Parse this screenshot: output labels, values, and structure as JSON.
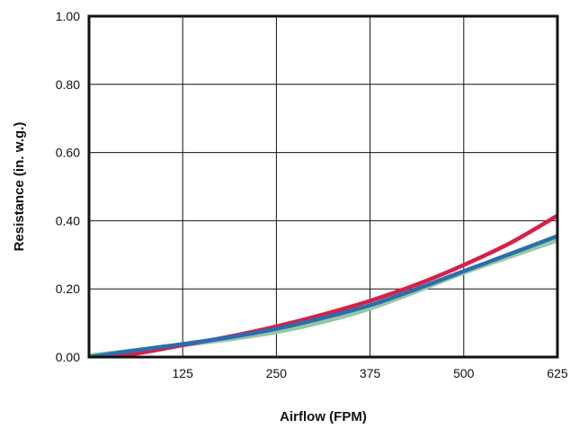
{
  "chart_data": {
    "type": "line",
    "xlabel": "Airflow (FPM)",
    "ylabel": "Resistance (in. w.g.)",
    "xlim": [
      0,
      625
    ],
    "ylim": [
      0,
      1.0
    ],
    "x_ticks": [
      125,
      250,
      375,
      500,
      625
    ],
    "x_tick_labels": [
      "125",
      "250",
      "375",
      "500",
      "625"
    ],
    "y_ticks": [
      0,
      0.2,
      0.4,
      0.6,
      0.8,
      1.0
    ],
    "y_tick_labels": [
      "0.00",
      "0.20",
      "0.40",
      "0.60",
      "0.80",
      "1.00"
    ],
    "grid": true,
    "legend": "none",
    "series": [
      {
        "color": "#95c8a6",
        "x": [
          0,
          62.5,
          125,
          187.5,
          250,
          312.5,
          375,
          437.5,
          500,
          562.5,
          625
        ],
        "y": [
          0.005,
          0.02,
          0.035,
          0.052,
          0.073,
          0.103,
          0.142,
          0.193,
          0.247,
          0.295,
          0.342
        ]
      },
      {
        "color": "#d81f45",
        "x": [
          0,
          62.5,
          125,
          187.5,
          250,
          312.5,
          375,
          437.5,
          500,
          562.5,
          625
        ],
        "y": [
          -0.005,
          0.01,
          0.035,
          0.06,
          0.09,
          0.125,
          0.165,
          0.213,
          0.27,
          0.335,
          0.415
        ]
      },
      {
        "color": "#2a6ead",
        "x": [
          0,
          62.5,
          125,
          187.5,
          250,
          312.5,
          375,
          437.5,
          500,
          562.5,
          625
        ],
        "y": [
          0.0,
          0.02,
          0.038,
          0.058,
          0.083,
          0.115,
          0.152,
          0.2,
          0.252,
          0.303,
          0.355
        ]
      }
    ]
  }
}
